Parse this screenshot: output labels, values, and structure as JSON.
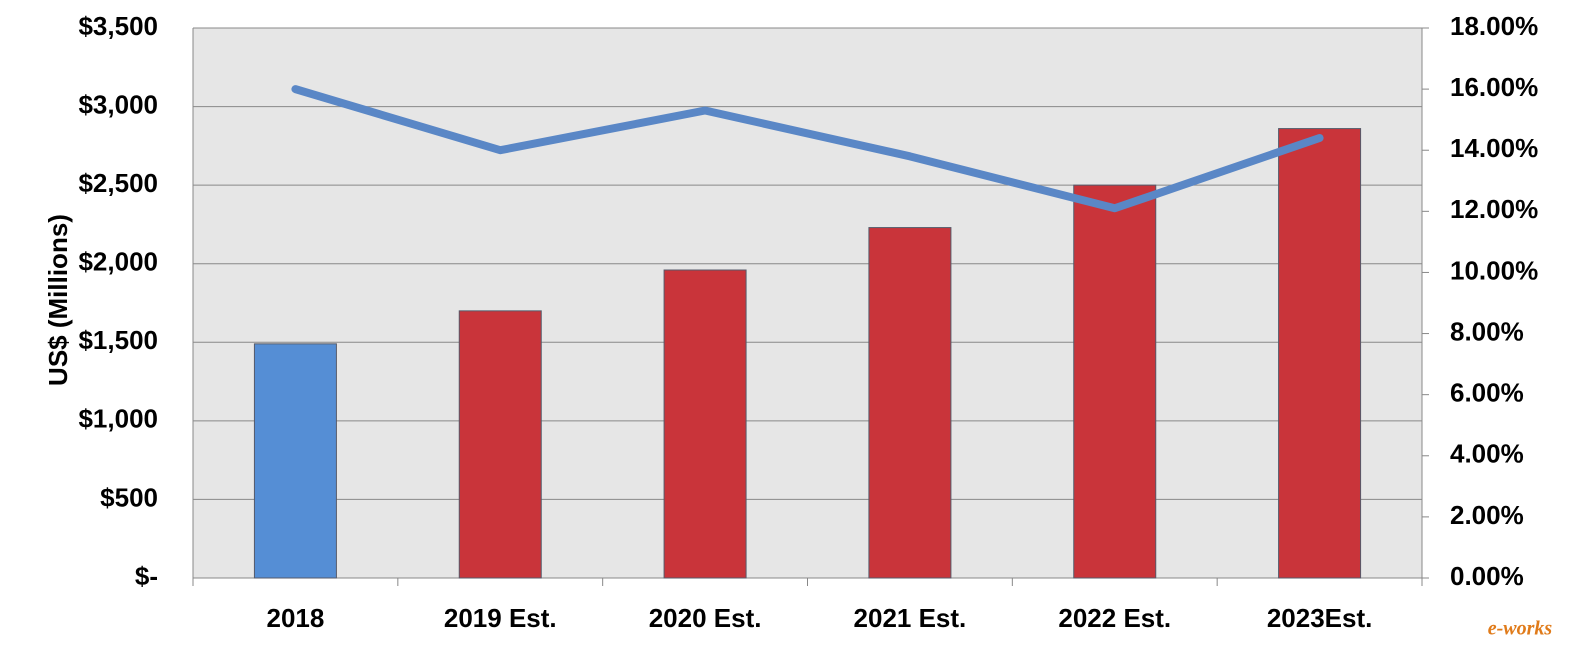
{
  "chart_data": {
    "type": "bar_line",
    "y_label": "US$ (Millions)",
    "watermark": "e-works",
    "categories": [
      "2018",
      "2019 Est.",
      "2020 Est.",
      "2021 Est.",
      "2022 Est.",
      "2023Est."
    ],
    "series": [
      {
        "type": "bar",
        "colors": [
          "#558ed5",
          "#c9343a",
          "#c9343a",
          "#c9343a",
          "#c9343a",
          "#c9343a"
        ],
        "values": [
          1490,
          1700,
          1960,
          2230,
          2500,
          2860
        ]
      },
      {
        "type": "line",
        "axis": "y2",
        "color": "#5a87c6",
        "values": [
          16.0,
          14.0,
          15.3,
          13.8,
          12.1,
          14.4
        ]
      }
    ],
    "ylim": [
      0,
      3500
    ],
    "yticks": [
      {
        "value": 0,
        "label": "$-"
      },
      {
        "value": 500,
        "label": "$500"
      },
      {
        "value": 1000,
        "label": "$1,000"
      },
      {
        "value": 1500,
        "label": "$1,500"
      },
      {
        "value": 2000,
        "label": "$2,000"
      },
      {
        "value": 2500,
        "label": "$2,500"
      },
      {
        "value": 3000,
        "label": "$3,000"
      },
      {
        "value": 3500,
        "label": "$3,500"
      }
    ],
    "y2lim": [
      0,
      18
    ],
    "y2ticks": [
      {
        "value": 0,
        "label": "0.00%"
      },
      {
        "value": 2,
        "label": "2.00%"
      },
      {
        "value": 4,
        "label": "4.00%"
      },
      {
        "value": 6,
        "label": "6.00%"
      },
      {
        "value": 8,
        "label": "8.00%"
      },
      {
        "value": 10,
        "label": "10.00%"
      },
      {
        "value": 12,
        "label": "12.00%"
      },
      {
        "value": 14,
        "label": "14.00%"
      },
      {
        "value": 16,
        "label": "16.00%"
      },
      {
        "value": 18,
        "label": "18.00%"
      }
    ],
    "grid": true
  }
}
